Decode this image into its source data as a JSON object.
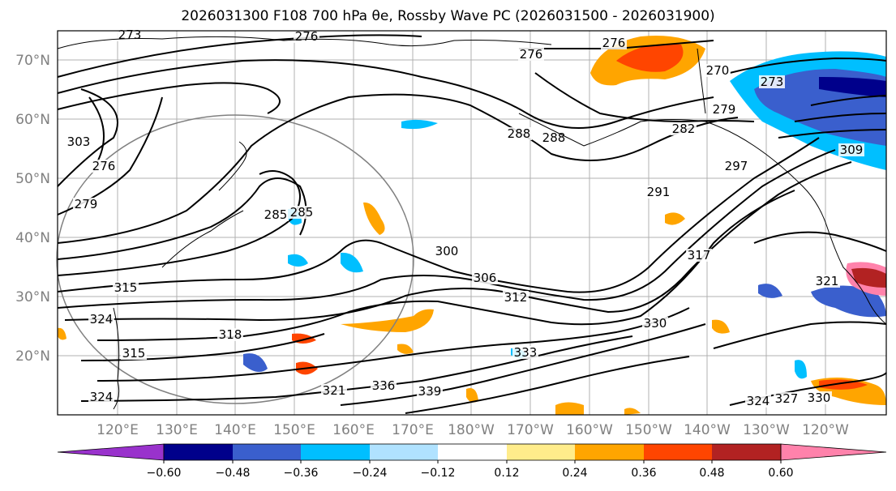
{
  "title": "2026031300 F108 700 hPa θe, Rossby Wave PC (2026031500 - 2026031900)",
  "lat_labels": [
    "70°N",
    "60°N",
    "50°N",
    "40°N",
    "30°N",
    "20°N"
  ],
  "lon_labels": [
    "120°E",
    "130°E",
    "140°E",
    "150°E",
    "160°E",
    "170°E",
    "180°W",
    "170°W",
    "160°W",
    "150°W",
    "140°W",
    "130°W",
    "120°W"
  ],
  "contour_labels": [
    "273",
    "276",
    "276",
    "276",
    "270",
    "273",
    "279",
    "282",
    "285",
    "288",
    "288",
    "303",
    "276",
    "279",
    "285",
    "291",
    "297",
    "300",
    "306",
    "312",
    "315",
    "318",
    "321",
    "324",
    "324",
    "327",
    "330",
    "333",
    "336",
    "339",
    "309",
    "317",
    "321",
    "324",
    "330",
    "315"
  ],
  "colorbar": {
    "ticks": [
      "−0.60",
      "−0.48",
      "−0.36",
      "−0.24",
      "−0.12",
      "0.12",
      "0.24",
      "0.36",
      "0.48",
      "0.60"
    ],
    "colors": [
      "#9932cc",
      "#00008b",
      "#3a5fcd",
      "#00bfff",
      "#b0e2ff",
      "#ffffff",
      "#ffec8b",
      "#ffa500",
      "#ff4500",
      "#b22222",
      "#ff82ab"
    ]
  }
}
